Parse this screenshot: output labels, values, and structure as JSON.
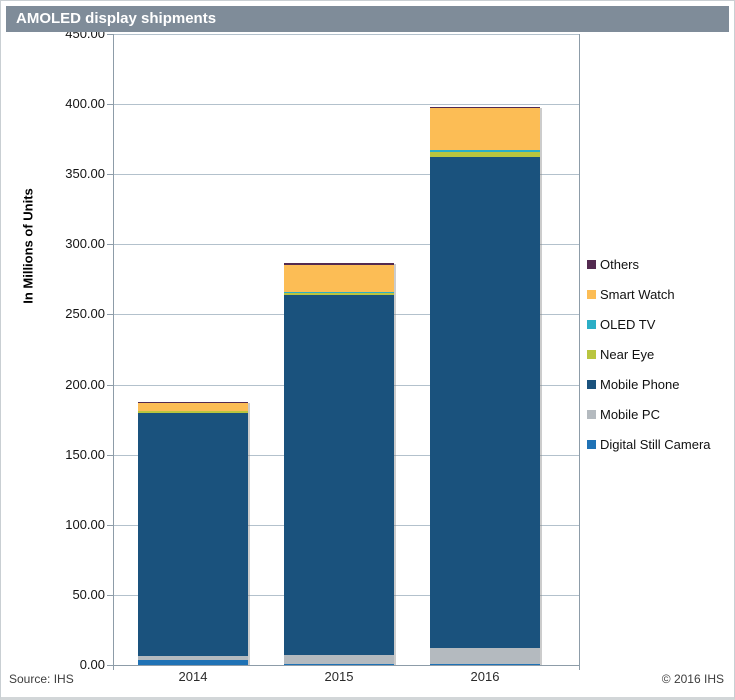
{
  "window": {
    "title": "AMOLED display shipments"
  },
  "footer": {
    "source": "Source: IHS",
    "copyright": "© 2016 IHS"
  },
  "colors": {
    "title_bar": "#7F8C99",
    "title_text": "#FFFFFF",
    "gridline": "#B3C1CC",
    "axis": "#8D9CA8",
    "tick_text": "#141414",
    "background": "#FFFFFF"
  },
  "chart_data": {
    "type": "bar",
    "stacked": true,
    "title": "AMOLED display shipments",
    "categories": [
      "2014",
      "2015",
      "2016"
    ],
    "series_bottom_to_top": [
      {
        "name": "Digital Still Camera",
        "color": "#1F72B5",
        "values": [
          3.2,
          0.7,
          0.7
        ]
      },
      {
        "name": "Mobile PC",
        "color": "#B4BABF",
        "values": [
          3.5,
          6.4,
          11.3
        ]
      },
      {
        "name": "Mobile Phone",
        "color": "#1A527D",
        "values": [
          173.0,
          257.0,
          350.0
        ]
      },
      {
        "name": "Near Eye",
        "color": "#B9C53F",
        "values": [
          1.1,
          1.4,
          3.9
        ]
      },
      {
        "name": "OLED TV",
        "color": "#2BAEC6",
        "values": [
          0.2,
          0.5,
          1.1
        ]
      },
      {
        "name": "Smart Watch",
        "color": "#FCBD55",
        "values": [
          5.5,
          19.5,
          30.0
        ]
      },
      {
        "name": "Others",
        "color": "#532A50",
        "values": [
          1.0,
          1.0,
          1.0
        ]
      }
    ],
    "totals": [
      187.5,
      286.5,
      398.0
    ],
    "legend": {
      "position": "right",
      "order_top_to_bottom": [
        "Others",
        "Smart Watch",
        "OLED TV",
        "Near Eye",
        "Mobile Phone",
        "Mobile PC",
        "Digital Still Camera"
      ]
    },
    "ylabel": "In Millions of Units",
    "ylim": [
      0,
      450
    ],
    "ytick_step": 50,
    "ytick_decimals": 2,
    "grid": "horizontal"
  }
}
